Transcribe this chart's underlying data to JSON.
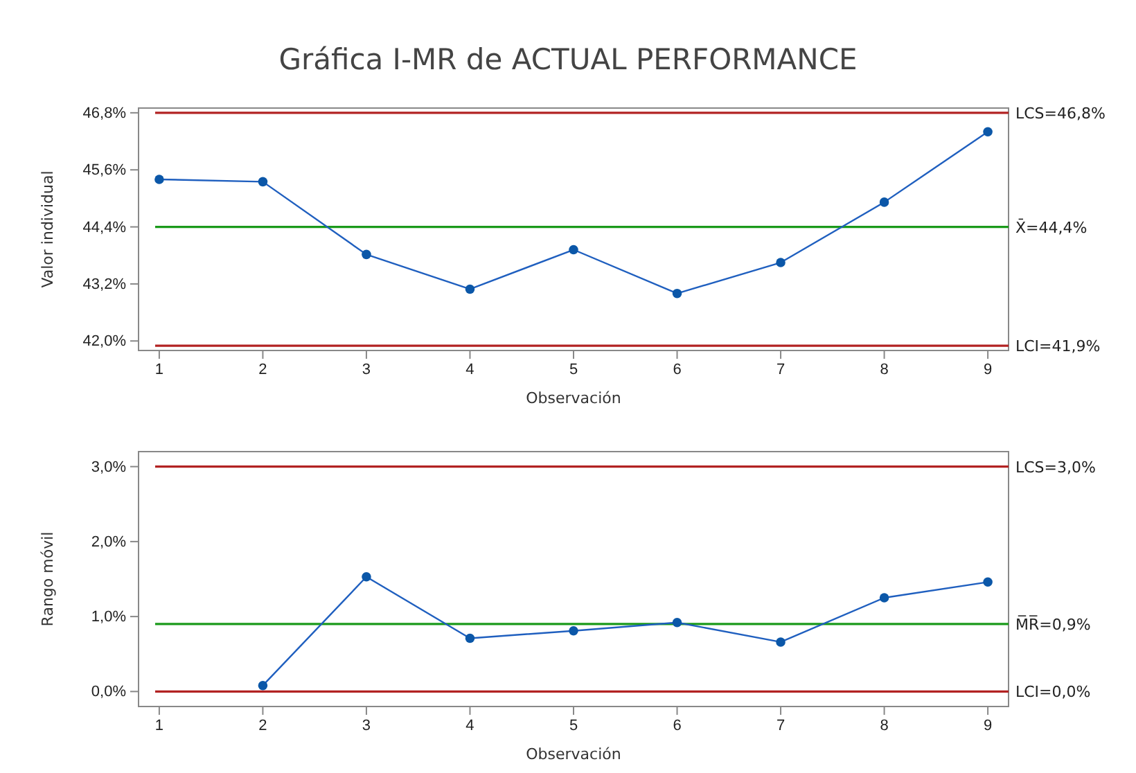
{
  "chart_data": [
    {
      "type": "line",
      "title": "Gráfica I-MR de ACTUAL PERFORMANCE",
      "xlabel": "Observación",
      "ylabel": "Valor individual",
      "x": [
        1,
        2,
        3,
        4,
        5,
        6,
        7,
        8,
        9
      ],
      "series": [
        {
          "color": "#1f5fbf",
          "values": [
            45.4,
            45.35,
            43.82,
            43.09,
            43.92,
            43.0,
            43.65,
            44.92,
            46.4
          ]
        }
      ],
      "xlim": [
        0.8,
        9.2
      ],
      "xticks": [
        1,
        2,
        3,
        4,
        5,
        6,
        7,
        8,
        9
      ],
      "ylim": [
        41.8,
        46.9
      ],
      "yticks": [
        {
          "value": 42.0,
          "label": "42,0%"
        },
        {
          "value": 43.2,
          "label": "43,2%"
        },
        {
          "value": 44.4,
          "label": "44,4%"
        },
        {
          "value": 45.6,
          "label": "45,6%"
        },
        {
          "value": 46.8,
          "label": "46,8%"
        }
      ],
      "ref_lines": [
        {
          "axis": "y",
          "value": 46.8,
          "label": "LCS=46,8%",
          "color": "#b22222"
        },
        {
          "axis": "y",
          "value": 44.4,
          "label": "X̄=44,4%",
          "color": "#1a9a1a"
        },
        {
          "axis": "y",
          "value": 41.9,
          "label": "LCI=41,9%",
          "color": "#b22222"
        }
      ],
      "marker": "circle",
      "grid": false
    },
    {
      "type": "line",
      "xlabel": "Observación",
      "ylabel": "Rango móvil",
      "series": [
        {
          "color": "#1f5fbf",
          "x": [
            2,
            3,
            4,
            5,
            6,
            7,
            8,
            9
          ],
          "values": [
            0.08,
            1.53,
            0.71,
            0.81,
            0.92,
            0.66,
            1.25,
            1.46
          ]
        }
      ],
      "xlim": [
        0.8,
        9.2
      ],
      "xticks": [
        1,
        2,
        3,
        4,
        5,
        6,
        7,
        8,
        9
      ],
      "ylim": [
        -0.2,
        3.2
      ],
      "yticks": [
        {
          "value": 0,
          "label": "0,0%"
        },
        {
          "value": 1,
          "label": "1,0%"
        },
        {
          "value": 2,
          "label": "2,0%"
        },
        {
          "value": 3,
          "label": "3,0%"
        }
      ],
      "ref_lines": [
        {
          "axis": "y",
          "value": 3.0,
          "label": "LCS=3,0%",
          "color": "#b22222"
        },
        {
          "axis": "y",
          "value": 0.9,
          "label": "M̅R̅=0,9%",
          "color": "#1a9a1a"
        },
        {
          "axis": "y",
          "value": 0,
          "label": "LCI=0,0%",
          "color": "#b22222"
        }
      ],
      "marker": "circle",
      "grid": false
    }
  ]
}
